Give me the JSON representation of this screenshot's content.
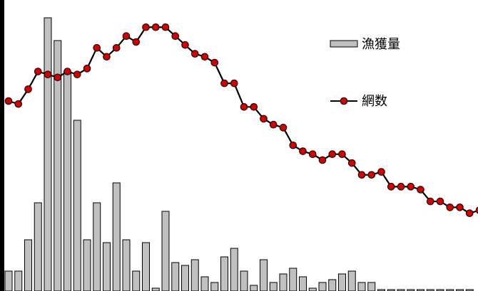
{
  "chart_data": {
    "type": "bar+line",
    "title": "",
    "xlabel": "",
    "ylabel": "",
    "grid": false,
    "legend_position": "top-right",
    "series": [
      {
        "name": "漁獲量",
        "kind": "bar",
        "color": "#c0c0c0",
        "values": [
          7,
          7,
          18,
          31,
          96,
          88,
          77,
          60,
          18,
          31,
          17,
          38,
          18,
          7,
          17,
          1,
          28,
          10,
          9,
          11,
          5,
          3,
          12,
          15,
          7,
          2,
          11,
          3,
          6,
          8,
          5,
          1,
          3,
          4,
          6,
          7,
          3,
          3,
          0.5,
          0.5,
          0.5,
          0.5,
          0.5,
          0.5,
          0.5,
          0.5,
          0.5,
          0.5
        ]
      },
      {
        "name": "網数",
        "kind": "line",
        "color": "#d40000",
        "values": [
          70,
          69,
          74,
          80,
          79,
          78,
          80,
          79,
          81,
          88,
          85,
          88,
          92,
          90,
          95,
          95,
          95,
          92,
          89,
          86,
          85,
          83,
          76,
          76,
          68,
          68,
          64,
          62,
          61,
          55,
          53,
          52,
          50,
          52,
          52,
          49,
          45,
          45,
          46,
          41,
          41,
          41,
          40,
          36,
          36,
          34,
          34,
          32,
          33
        ]
      }
    ],
    "ylim_bar": [
      0,
      100
    ],
    "ylim_line": [
      0,
      100
    ]
  }
}
